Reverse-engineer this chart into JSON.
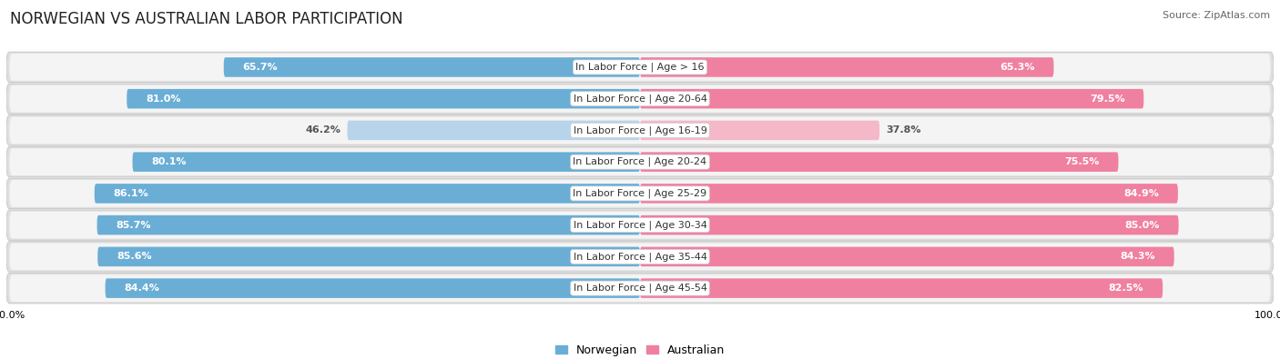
{
  "title": "NORWEGIAN VS AUSTRALIAN LABOR PARTICIPATION",
  "source": "Source: ZipAtlas.com",
  "categories": [
    "In Labor Force | Age > 16",
    "In Labor Force | Age 20-64",
    "In Labor Force | Age 16-19",
    "In Labor Force | Age 20-24",
    "In Labor Force | Age 25-29",
    "In Labor Force | Age 30-34",
    "In Labor Force | Age 35-44",
    "In Labor Force | Age 45-54"
  ],
  "norwegian_values": [
    65.7,
    81.0,
    46.2,
    80.1,
    86.1,
    85.7,
    85.6,
    84.4
  ],
  "australian_values": [
    65.3,
    79.5,
    37.8,
    75.5,
    84.9,
    85.0,
    84.3,
    82.5
  ],
  "norwegian_color": "#6aaed6",
  "norwegian_light_color": "#b8d4ea",
  "australian_color": "#f080a0",
  "australian_light_color": "#f5b8c8",
  "row_bg_color": "#e8e8e8",
  "row_inner_color": "#f8f8f8",
  "max_value": 100.0,
  "bar_height": 0.62,
  "title_fontsize": 12,
  "label_fontsize": 8,
  "value_fontsize": 8,
  "legend_fontsize": 9,
  "background_color": "#ffffff"
}
